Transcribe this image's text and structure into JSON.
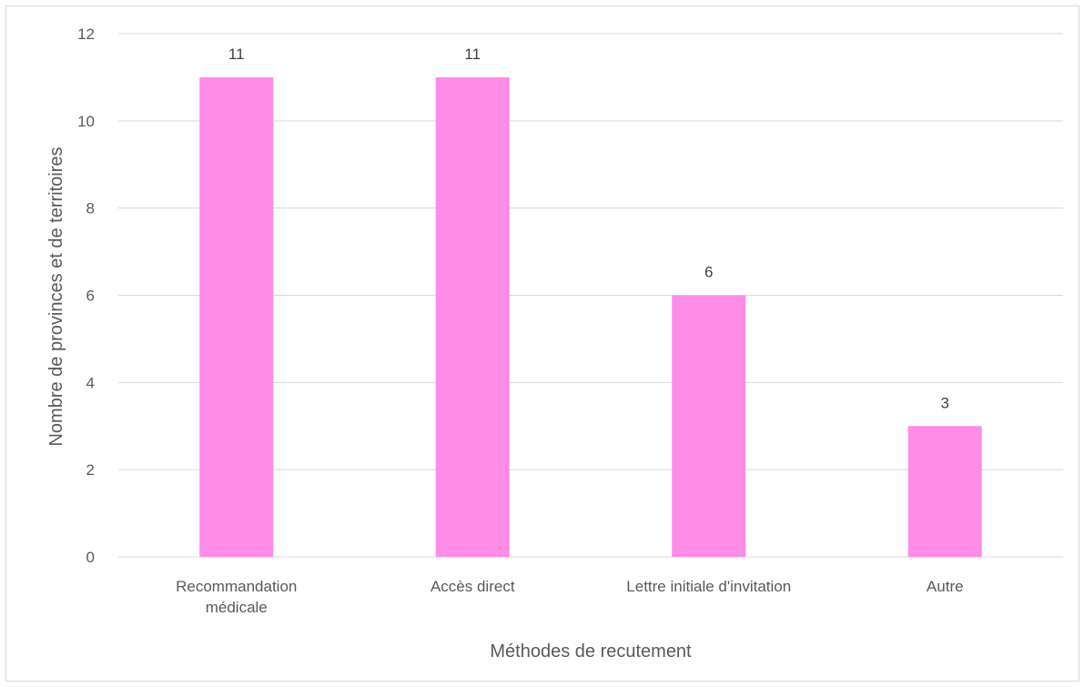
{
  "chart_data": {
    "type": "bar",
    "title": "",
    "xlabel": "Méthodes de recutement",
    "ylabel": "Nombre de provinces et de territoires",
    "categories": [
      [
        "Recommandation",
        "médicale"
      ],
      [
        "Accès direct"
      ],
      [
        "Lettre initiale d'invitation"
      ],
      [
        "Autre"
      ]
    ],
    "values": [
      11,
      11,
      6,
      3
    ],
    "data_labels": [
      "11",
      "11",
      "6",
      "3"
    ],
    "ylim": [
      0,
      12
    ],
    "yticks": [
      0,
      2,
      4,
      6,
      8,
      10,
      12
    ],
    "grid": true,
    "legend": "none",
    "colors": {
      "bar": "#ff8ce6",
      "grid": "#d9d9d9",
      "axis_text": "#595959",
      "label_text": "#404040"
    }
  }
}
